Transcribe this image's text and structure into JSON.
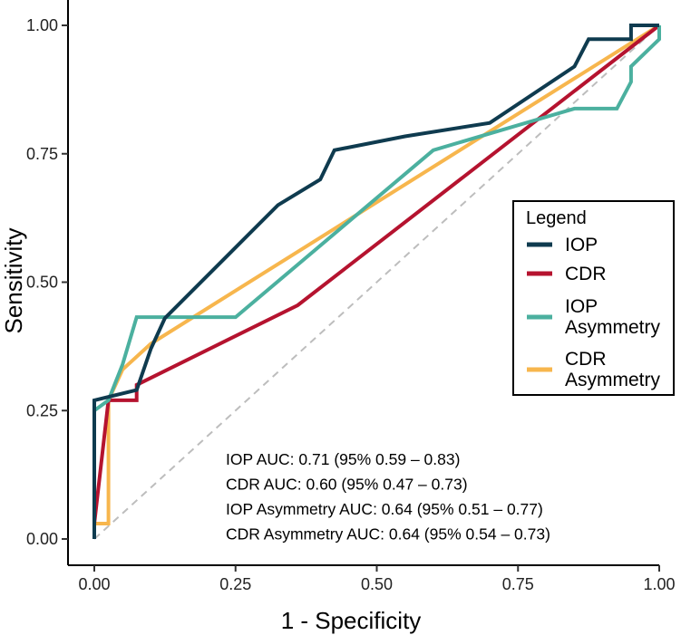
{
  "chart_data": {
    "type": "line",
    "xlabel": "1 - Specificity",
    "ylabel": "Sensitivity",
    "xlim": [
      0,
      1
    ],
    "ylim": [
      0,
      1
    ],
    "x_ticks": [
      0,
      0.25,
      0.5,
      0.75,
      1
    ],
    "y_ticks": [
      0,
      0.25,
      0.5,
      0.75,
      1
    ],
    "x_tick_labels": [
      "0.00",
      "0.25",
      "0.50",
      "0.75",
      "1.00"
    ],
    "y_tick_labels": [
      "0.00",
      "0.25",
      "0.50",
      "0.75",
      "1.00"
    ],
    "grid": false,
    "legend": {
      "title": "Legend",
      "position": "right",
      "entries": [
        {
          "lines": [
            "IOP"
          ]
        },
        {
          "lines": [
            "CDR"
          ]
        },
        {
          "lines": [
            "IOP",
            "Asymmetry"
          ]
        },
        {
          "lines": [
            "CDR",
            "Asymmetry"
          ]
        }
      ]
    },
    "reference_line": {
      "x": [
        0,
        1
      ],
      "y": [
        0,
        1
      ],
      "color": "#bdbdbd",
      "style": "dashed"
    },
    "series": [
      {
        "name": "IOP",
        "color": "#0f3b4f",
        "x": [
          0,
          0,
          0.075,
          0.1,
          0.125,
          0.325,
          0.4,
          0.425,
          0.55,
          0.7,
          0.85,
          0.875,
          0.95,
          0.95,
          1
        ],
        "y": [
          0,
          0.27,
          0.29,
          0.37,
          0.43,
          0.65,
          0.7,
          0.757,
          0.784,
          0.81,
          0.92,
          0.973,
          0.973,
          1,
          1
        ]
      },
      {
        "name": "CDR",
        "color": "#b5132f",
        "x": [
          0,
          0,
          0.025,
          0.075,
          0.075,
          0.36,
          1
        ],
        "y": [
          0,
          0.03,
          0.27,
          0.27,
          0.3,
          0.455,
          1
        ]
      },
      {
        "name": "IOP Asymmetry",
        "color": "#4bb09f",
        "x": [
          0,
          0,
          0.025,
          0.05,
          0.075,
          0.25,
          0.6,
          0.85,
          0.925,
          0.95,
          0.95,
          1,
          1
        ],
        "y": [
          0,
          0.25,
          0.27,
          0.34,
          0.432,
          0.432,
          0.757,
          0.838,
          0.838,
          0.89,
          0.92,
          0.973,
          1
        ]
      },
      {
        "name": "CDR Asymmetry",
        "color": "#f7b64d",
        "x": [
          0,
          0,
          0.025,
          0.025,
          0.05,
          0.1,
          1
        ],
        "y": [
          0,
          0.03,
          0.03,
          0.27,
          0.33,
          0.38,
          1
        ]
      }
    ],
    "annotations": [
      "IOP AUC: 0.71 (95% 0.59 – 0.83)",
      "CDR AUC: 0.60 (95% 0.47 – 0.73)",
      "IOP Asymmetry AUC: 0.64 (95% 0.51 – 0.77)",
      "CDR Asymmetry AUC: 0.64 (95% 0.54 – 0.73)"
    ]
  }
}
